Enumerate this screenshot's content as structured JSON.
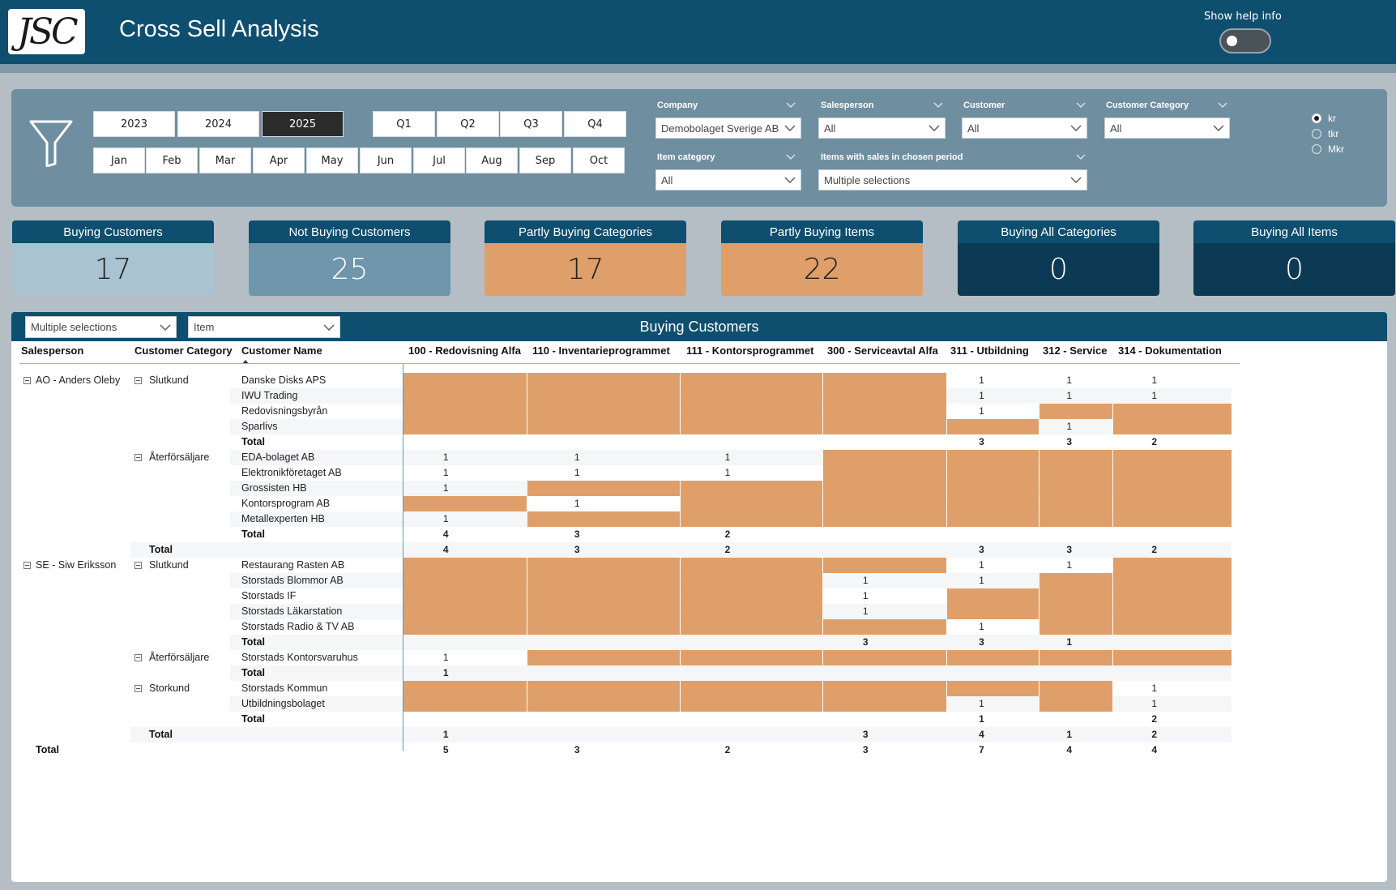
{
  "header": {
    "logo_text": "JSC",
    "title": "Cross Sell Analysis",
    "help_label": "Show help info"
  },
  "filters": {
    "years": [
      "2023",
      "2024",
      "2025"
    ],
    "active_year": "2025",
    "quarters": [
      "Q1",
      "Q2",
      "Q3",
      "Q4"
    ],
    "months": [
      "Jan",
      "Feb",
      "Mar",
      "Apr",
      "May",
      "Jun",
      "Jul",
      "Aug",
      "Sep",
      "Oct"
    ],
    "company": {
      "label": "Company",
      "value": "Demobolaget Sverige AB"
    },
    "salesperson": {
      "label": "Salesperson",
      "value": "All"
    },
    "customer": {
      "label": "Customer",
      "value": "All"
    },
    "customer_category": {
      "label": "Customer Category",
      "value": "All"
    },
    "item_category": {
      "label": "Item category",
      "value": "All"
    },
    "items_with_sales": {
      "label": "Items with sales in chosen period",
      "value": "Multiple selections"
    },
    "units": [
      "kr",
      "tkr",
      "Mkr"
    ],
    "active_unit": "kr"
  },
  "kpis": [
    {
      "label": "Buying Customers",
      "value": "17",
      "bg": "#a9c3d1",
      "fg": "#222222"
    },
    {
      "label": "Not Buying Customers",
      "value": "25",
      "bg": "#6f96ab",
      "fg": "#ffffff"
    },
    {
      "label": "Partly Buying Categories",
      "value": "17",
      "bg": "#df9f6a",
      "fg": "#222222"
    },
    {
      "label": "Partly Buying Items",
      "value": "22",
      "bg": "#df9f6a",
      "fg": "#222222"
    },
    {
      "label": "Buying All Categories",
      "value": "0",
      "bg": "#0c3a54",
      "fg": "#ffffff"
    },
    {
      "label": "Buying All Items",
      "value": "0",
      "bg": "#0c3a54",
      "fg": "#ffffff"
    }
  ],
  "matrix": {
    "title": "Buying Customers",
    "selector_left": "Multiple selections",
    "selector_right": "Item",
    "row_headers": [
      "Salesperson",
      "Customer Category",
      "Customer Name"
    ],
    "columns": [
      "100 - Redovisning Alfa",
      "110 - Inventarieprogrammet",
      "111 - Kontorsprogrammet",
      "300 - Serviceavtal Alfa",
      "311 - Utbildning",
      "312 - Service",
      "314 - Dokumentation"
    ],
    "colors": {
      "gap": "#df9f6a",
      "band": "#f4f6f7"
    },
    "rows": [
      {
        "sp": "AO - Anders Oleby",
        "cat": "Slutkund",
        "name": "Danske Disks APS",
        "type": "row",
        "cells": [
          "o",
          "o",
          "o",
          "o",
          "1",
          "1",
          "1"
        ]
      },
      {
        "sp": "",
        "cat": "",
        "name": "IWU Trading",
        "type": "row",
        "cells": [
          "o",
          "o",
          "o",
          "o",
          "1",
          "1",
          "1"
        ]
      },
      {
        "sp": "",
        "cat": "",
        "name": "Redovisningsbyrån",
        "type": "row",
        "cells": [
          "o",
          "o",
          "o",
          "o",
          "1",
          "o",
          "o"
        ]
      },
      {
        "sp": "",
        "cat": "",
        "name": "Sparlivs",
        "type": "row",
        "cells": [
          "o",
          "o",
          "o",
          "o",
          "o",
          "1",
          "o"
        ]
      },
      {
        "sp": "",
        "cat": "",
        "name": "Total",
        "type": "sub",
        "cells": [
          "",
          "",
          "",
          "",
          "3",
          "3",
          "2"
        ]
      },
      {
        "sp": "",
        "cat": "Återförsäljare",
        "name": "EDA-bolaget AB",
        "type": "row",
        "cells": [
          "1",
          "1",
          "1",
          "o",
          "o",
          "o",
          "o"
        ]
      },
      {
        "sp": "",
        "cat": "",
        "name": "Elektronikföretaget AB",
        "type": "row",
        "cells": [
          "1",
          "1",
          "1",
          "o",
          "o",
          "o",
          "o"
        ]
      },
      {
        "sp": "",
        "cat": "",
        "name": "Grossisten HB",
        "type": "row",
        "cells": [
          "1",
          "o",
          "o",
          "o",
          "o",
          "o",
          "o"
        ]
      },
      {
        "sp": "",
        "cat": "",
        "name": "Kontorsprogram AB",
        "type": "row",
        "cells": [
          "o",
          "1",
          "o",
          "o",
          "o",
          "o",
          "o"
        ]
      },
      {
        "sp": "",
        "cat": "",
        "name": "Metallexperten HB",
        "type": "row",
        "cells": [
          "1",
          "o",
          "o",
          "o",
          "o",
          "o",
          "o"
        ]
      },
      {
        "sp": "",
        "cat": "",
        "name": "Total",
        "type": "sub",
        "cells": [
          "4",
          "3",
          "2",
          "",
          "",
          "",
          ""
        ]
      },
      {
        "sp": "",
        "cat": "Total",
        "name": "",
        "type": "sptotal",
        "cells": [
          "4",
          "3",
          "2",
          "",
          "3",
          "3",
          "2"
        ]
      },
      {
        "sp": "SE - Siw Eriksson",
        "cat": "Slutkund",
        "name": "Restaurang Rasten AB",
        "type": "row",
        "cells": [
          "o",
          "o",
          "o",
          "o",
          "1",
          "1",
          "o"
        ]
      },
      {
        "sp": "",
        "cat": "",
        "name": "Storstads Blommor AB",
        "type": "row",
        "cells": [
          "o",
          "o",
          "o",
          "1",
          "1",
          "o",
          "o"
        ]
      },
      {
        "sp": "",
        "cat": "",
        "name": "Storstads IF",
        "type": "row",
        "cells": [
          "o",
          "o",
          "o",
          "1",
          "o",
          "o",
          "o"
        ]
      },
      {
        "sp": "",
        "cat": "",
        "name": "Storstads Läkarstation",
        "type": "row",
        "cells": [
          "o",
          "o",
          "o",
          "1",
          "o",
          "o",
          "o"
        ]
      },
      {
        "sp": "",
        "cat": "",
        "name": "Storstads Radio & TV AB",
        "type": "row",
        "cells": [
          "o",
          "o",
          "o",
          "o",
          "1",
          "o",
          "o"
        ]
      },
      {
        "sp": "",
        "cat": "",
        "name": "Total",
        "type": "sub",
        "cells": [
          "",
          "",
          "",
          "3",
          "3",
          "1",
          ""
        ]
      },
      {
        "sp": "",
        "cat": "Återförsäljare",
        "name": "Storstads Kontorsvaruhus",
        "type": "row",
        "cells": [
          "1",
          "o",
          "o",
          "o",
          "o",
          "o",
          "o"
        ]
      },
      {
        "sp": "",
        "cat": "",
        "name": "Total",
        "type": "sub",
        "cells": [
          "1",
          "",
          "",
          "",
          "",
          "",
          ""
        ]
      },
      {
        "sp": "",
        "cat": "Storkund",
        "name": "Storstads Kommun",
        "type": "row",
        "cells": [
          "o",
          "o",
          "o",
          "o",
          "o",
          "o",
          "1"
        ]
      },
      {
        "sp": "",
        "cat": "",
        "name": "Utbildningsbolaget",
        "type": "row",
        "cells": [
          "o",
          "o",
          "o",
          "o",
          "1",
          "o",
          "1"
        ]
      },
      {
        "sp": "",
        "cat": "",
        "name": "Total",
        "type": "sub",
        "cells": [
          "",
          "",
          "",
          "",
          "1",
          "",
          "2"
        ]
      },
      {
        "sp": "",
        "cat": "Total",
        "name": "",
        "type": "sptotal",
        "cells": [
          "1",
          "",
          "",
          "3",
          "4",
          "1",
          "2"
        ]
      },
      {
        "sp": "Total",
        "cat": "",
        "name": "",
        "type": "grand",
        "cells": [
          "5",
          "3",
          "2",
          "3",
          "7",
          "4",
          "4"
        ]
      }
    ]
  }
}
